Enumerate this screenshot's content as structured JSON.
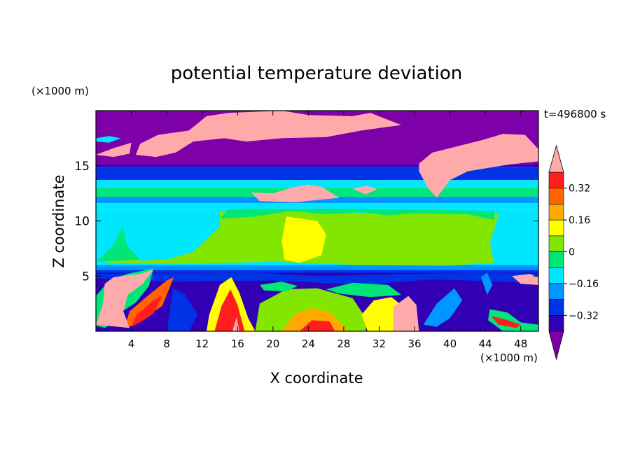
{
  "chart_data": {
    "type": "heatmap",
    "title": "potential temperature deviation",
    "xlabel": "X coordinate",
    "ylabel": "Z coordinate",
    "x_units": "(×1000 m)",
    "y_units": "(×1000 m)",
    "time_label": "t=496800 s",
    "xlim": [
      0,
      50
    ],
    "ylim": [
      0,
      20
    ],
    "x_ticks": [
      4,
      8,
      12,
      16,
      20,
      24,
      28,
      32,
      36,
      40,
      44,
      48
    ],
    "y_ticks": [
      5,
      10,
      15
    ],
    "colorbar": {
      "levels": [
        -0.4,
        -0.32,
        -0.24,
        -0.16,
        -0.08,
        0,
        0.08,
        0.16,
        0.24,
        0.32,
        0.4
      ],
      "labeled_ticks": [
        0.32,
        0.16,
        0,
        -0.16,
        -0.32
      ],
      "tick_labels": [
        "0.32",
        "0.16",
        "0",
        "−0.16",
        "−0.32"
      ],
      "colors": [
        "#7d00a8",
        "#3200b4",
        "#0032e6",
        "#0096ff",
        "#00e6ff",
        "#00e678",
        "#82e600",
        "#ffff00",
        "#ffaa00",
        "#ff6400",
        "#ff1e1e",
        "#ffaaaa"
      ],
      "extend": "both"
    },
    "field": [
      {
        "z": [
          18,
          20
        ],
        "class": "min"
      },
      {
        "z": [
          15,
          17
        ],
        "class": "min"
      },
      {
        "z": [
          14,
          15
        ],
        "class": "-0.32"
      },
      {
        "z": [
          13,
          14
        ],
        "class": "-0.16"
      },
      {
        "z": [
          12,
          13
        ],
        "class": "0"
      },
      {
        "z": [
          11,
          12
        ],
        "class": "-0.24"
      },
      {
        "z": [
          6,
          11
        ],
        "class": "0.08"
      },
      {
        "z": [
          5.5,
          6
        ],
        "class": "-0.16"
      },
      {
        "z": [
          0,
          5.5
        ],
        "class": "mixed"
      }
    ]
  }
}
